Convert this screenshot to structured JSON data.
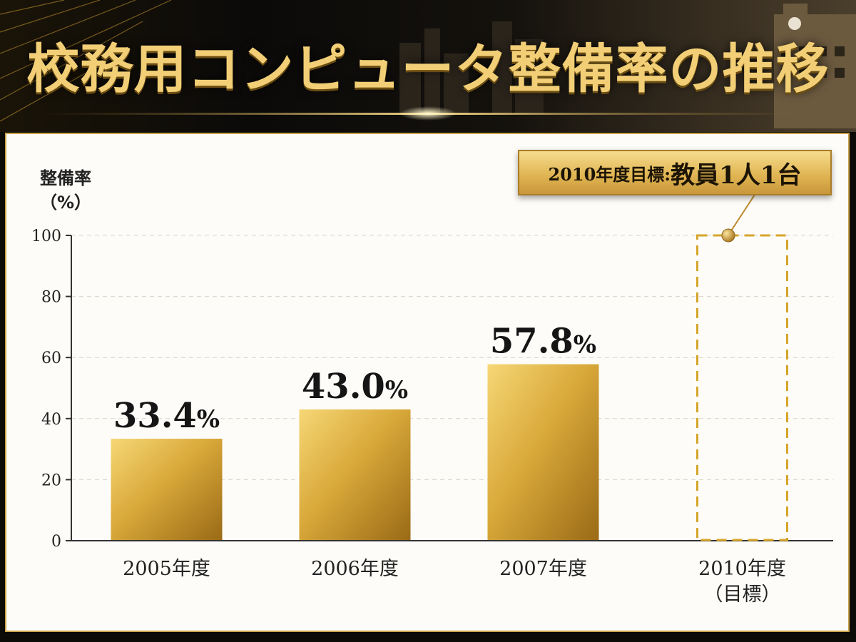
{
  "header": {
    "title": "校務用コンピュータ整備率の推移"
  },
  "callout": {
    "lead": "2010年度目標:",
    "text": "教員1人1台"
  },
  "chart_data": {
    "type": "bar",
    "title": "校務用コンピュータ整備率の推移",
    "ylabel_line1": "整備率",
    "ylabel_line2": "（%）",
    "ylim": [
      0,
      100
    ],
    "yticks": [
      0,
      20,
      40,
      60,
      80,
      100
    ],
    "categories": [
      {
        "line1": "2005年度",
        "line2": ""
      },
      {
        "line1": "2006年度",
        "line2": ""
      },
      {
        "line1": "2007年度",
        "line2": ""
      },
      {
        "line1": "2010年度",
        "line2": "（目標）"
      }
    ],
    "values": [
      33.4,
      43.0,
      57.8,
      100
    ],
    "value_labels": [
      "33.4",
      "43.0",
      "57.8",
      ""
    ],
    "value_unit": "%",
    "target_index": 3,
    "grid": true,
    "colors": {
      "bar_light": "#f6d776",
      "bar_mid": "#d9a93a",
      "bar_dark": "#9a6a16",
      "target": "#d6a62a"
    }
  }
}
